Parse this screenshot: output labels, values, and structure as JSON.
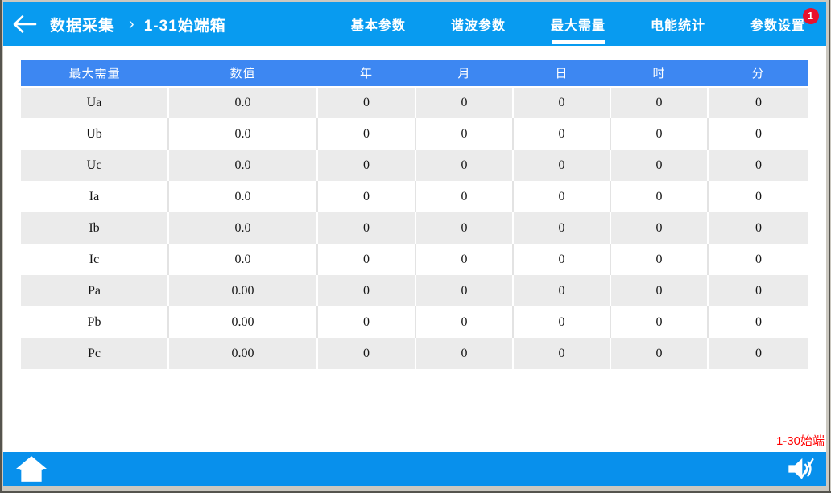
{
  "header": {
    "breadcrumb": {
      "section": "数据采集",
      "separator": "›",
      "page": "1-31始端箱"
    },
    "tabs": [
      {
        "label": "基本参数",
        "active": false
      },
      {
        "label": "谐波参数",
        "active": false
      },
      {
        "label": "最大需量",
        "active": true
      },
      {
        "label": "电能统计",
        "active": false
      },
      {
        "label": "参数设置",
        "active": false,
        "badge": "1"
      }
    ]
  },
  "table": {
    "columns": [
      "最大需量",
      "数值",
      "年",
      "月",
      "日",
      "时",
      "分"
    ],
    "rows": [
      [
        "Ua",
        "0.0",
        "0",
        "0",
        "0",
        "0",
        "0"
      ],
      [
        "Ub",
        "0.0",
        "0",
        "0",
        "0",
        "0",
        "0"
      ],
      [
        "Uc",
        "0.0",
        "0",
        "0",
        "0",
        "0",
        "0"
      ],
      [
        "Ia",
        "0.0",
        "0",
        "0",
        "0",
        "0",
        "0"
      ],
      [
        "Ib",
        "0.0",
        "0",
        "0",
        "0",
        "0",
        "0"
      ],
      [
        "Ic",
        "0.0",
        "0",
        "0",
        "0",
        "0",
        "0"
      ],
      [
        "Pa",
        "0.00",
        "0",
        "0",
        "0",
        "0",
        "0"
      ],
      [
        "Pb",
        "0.00",
        "0",
        "0",
        "0",
        "0",
        "0"
      ],
      [
        "Pc",
        "0.00",
        "0",
        "0",
        "0",
        "0",
        "0"
      ]
    ]
  },
  "footer": {
    "device_note": "1-30始端"
  },
  "colors": {
    "header_blue": "#089bf0",
    "bottom_bar_blue": "#0890ec",
    "table_header_blue": "#3d87f2",
    "row_alt_gray": "#ebebeb",
    "badge_red": "#e8112d",
    "note_red": "#ff0000"
  }
}
